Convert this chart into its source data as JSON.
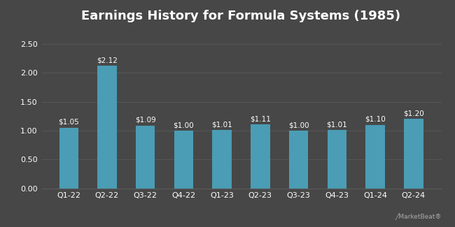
{
  "title": "Earnings History for Formula Systems (1985)",
  "categories": [
    "Q1-22",
    "Q2-22",
    "Q3-22",
    "Q4-22",
    "Q1-23",
    "Q2-23",
    "Q3-23",
    "Q4-23",
    "Q1-24",
    "Q2-24"
  ],
  "values": [
    1.05,
    2.12,
    1.09,
    1.0,
    1.01,
    1.11,
    1.0,
    1.01,
    1.1,
    1.2
  ],
  "labels": [
    "$1.05",
    "$2.12",
    "$1.09",
    "$1.00",
    "$1.01",
    "$1.11",
    "$1.00",
    "$1.01",
    "$1.10",
    "$1.20"
  ],
  "bar_color": "#4a9db5",
  "background_color": "#474747",
  "text_color": "#ffffff",
  "grid_color": "#5a5a5a",
  "ylim": [
    0,
    2.75
  ],
  "yticks": [
    0.0,
    0.5,
    1.0,
    1.5,
    2.0,
    2.5
  ],
  "title_fontsize": 13,
  "tick_fontsize": 8,
  "label_fontsize": 7.5,
  "bar_width": 0.5
}
